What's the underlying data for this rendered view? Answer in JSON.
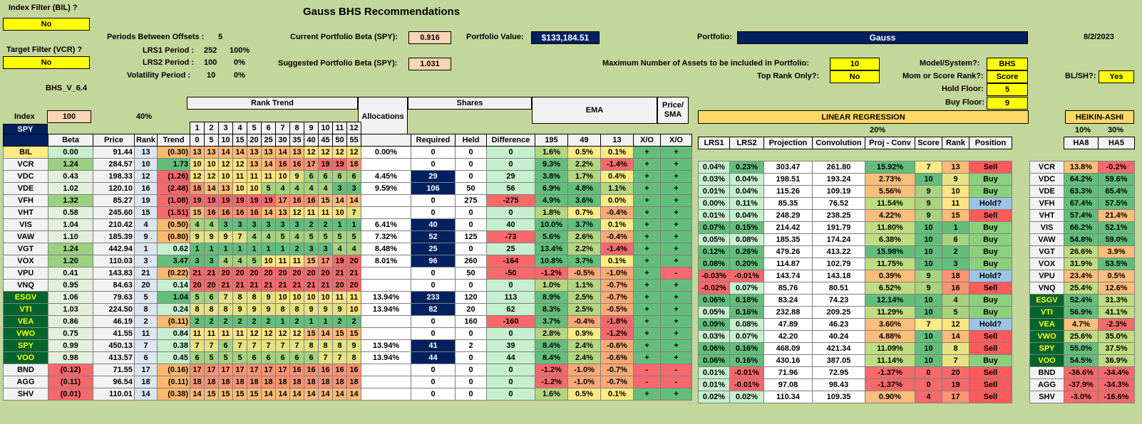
{
  "title": "Gauss BHS Recommendations",
  "date": "8/2/2023",
  "index_filter": {
    "label": "Index Filter (BIL) ?",
    "value": "No"
  },
  "target_filter": {
    "label": "Target Filter (VCR) ?",
    "value": "No"
  },
  "version": "BHS_V_6.4",
  "periods": [
    {
      "label": "Periods Between Offsets :",
      "value": "5",
      "pct": ""
    },
    {
      "label": "LRS1 Period :",
      "value": "252",
      "pct": "100%"
    },
    {
      "label": "LRS2 Period :",
      "value": "100",
      "pct": "0%"
    },
    {
      "label": "Volatility Period :",
      "value": "10",
      "pct": "0%"
    }
  ],
  "current_beta": {
    "label": "Current Portfolio Beta (SPY):",
    "value": "0.916"
  },
  "suggested_beta": {
    "label": "Suggested Portfolio Beta (SPY):",
    "value": "1.031"
  },
  "portfolio_value": {
    "label": "Portfolio Value:",
    "value": "$133,184.51"
  },
  "portfolio": {
    "label": "Portfolio:",
    "value": "Gauss"
  },
  "max_assets": {
    "label": "Maximum Number of Assets to be included in Portfolio:",
    "value": "10"
  },
  "top_rank": {
    "label": "Top Rank Only?:",
    "value": "No"
  },
  "model": {
    "label": "Model/System?:",
    "value": "BHS"
  },
  "mom_score": {
    "label": "Mom or Score Rank?:",
    "value": "Score"
  },
  "hold_floor": {
    "label": "Hold Floor:",
    "value": "5"
  },
  "buy_floor": {
    "label": "Buy Floor:",
    "value": "9"
  },
  "blsh": {
    "label": "BL/SH?:",
    "value": "Yes"
  },
  "index_block": {
    "index_label": "Index",
    "index_val": "100",
    "pct": "40%",
    "spy": "SPY"
  },
  "headers": {
    "beta": "Beta",
    "price": "Price",
    "rank": "Rank",
    "trend": "Trend",
    "rank_trend": "Rank Trend",
    "rank_trend_nums": [
      "1",
      "2",
      "3",
      "4",
      "5",
      "6",
      "7",
      "8",
      "9",
      "10",
      "11",
      "12"
    ],
    "rank_trend_offsets": [
      "0",
      "5",
      "10",
      "15",
      "20",
      "25",
      "30",
      "35",
      "40",
      "45",
      "50",
      "55"
    ],
    "allocations": "Allocations",
    "shares": "Shares",
    "required": "Required",
    "held": "Held",
    "difference": "Difference",
    "ema": "EMA",
    "ema_periods": [
      "195",
      "49",
      "13"
    ],
    "xo": "X/O",
    "price_sma": "Price/ SMA",
    "linreg": "LINEAR REGRESSION",
    "linreg_pct": "20%",
    "lrs1": "LRS1",
    "lrs2": "LRS2",
    "projection": "Projection",
    "convolution": "Convolution",
    "proj_conv": "Proj - Conv",
    "score": "Score",
    "rank2": "Rank",
    "position": "Position",
    "heikin": "HEIKIN-ASHI",
    "ha_pct1": "10%",
    "ha_pct2": "30%",
    "ha8": "HA8",
    "ha5": "HA5"
  },
  "rows": [
    {
      "t": "BIL",
      "beta": "0.00",
      "price": "91.44",
      "rank": "13",
      "trend": "(0.30)",
      "rt": [
        "13",
        "13",
        "14",
        "14",
        "13",
        "13",
        "14",
        "13",
        "12",
        "12",
        "12",
        "12"
      ],
      "alloc": "0.00%",
      "req": "0",
      "held": "0",
      "diff": "0",
      "e1": "1.6%",
      "e2": "0.5%",
      "e3": "0.1%",
      "xo1": "+",
      "xo2": "+",
      "lrs1": "",
      "lrs2": "",
      "proj": "",
      "conv": "",
      "pc": "",
      "score": "",
      "rank2": "",
      "pos": "",
      "ha8": "",
      "ha5": ""
    },
    {
      "t": "VCR",
      "beta": "1.24",
      "price": "284.57",
      "rank": "10",
      "trend": "1.73",
      "rt": [
        "10",
        "10",
        "12",
        "12",
        "13",
        "14",
        "16",
        "16",
        "17",
        "19",
        "19",
        "18"
      ],
      "alloc": "",
      "req": "0",
      "held": "0",
      "diff": "0",
      "e1": "9.3%",
      "e2": "2.2%",
      "e3": "-1.4%",
      "xo1": "+",
      "xo2": "+",
      "lrs1": "0.04%",
      "lrs2": "0.23%",
      "proj": "303.47",
      "conv": "261.80",
      "pc": "15.92%",
      "score": "7",
      "rank2": "13",
      "pos": "Sell",
      "ha8": "13.8%",
      "ha5": "-0.2%"
    },
    {
      "t": "VDC",
      "beta": "0.43",
      "price": "198.33",
      "rank": "12",
      "trend": "(1.26)",
      "rt": [
        "12",
        "12",
        "10",
        "11",
        "11",
        "11",
        "10",
        "9",
        "6",
        "6",
        "6",
        "6"
      ],
      "alloc": "4.45%",
      "req": "29",
      "held": "0",
      "diff": "29",
      "e1": "3.8%",
      "e2": "1.7%",
      "e3": "0.4%",
      "xo1": "+",
      "xo2": "+",
      "lrs1": "0.03%",
      "lrs2": "0.04%",
      "proj": "198.51",
      "conv": "193.24",
      "pc": "2.73%",
      "score": "10",
      "rank2": "9",
      "pos": "Buy",
      "ha8": "64.2%",
      "ha5": "59.6%"
    },
    {
      "t": "VDE",
      "beta": "1.02",
      "price": "120.10",
      "rank": "16",
      "trend": "(2.48)",
      "rt": [
        "16",
        "14",
        "13",
        "10",
        "10",
        "5",
        "4",
        "4",
        "4",
        "4",
        "3",
        "3"
      ],
      "alloc": "9.59%",
      "req": "106",
      "held": "50",
      "diff": "56",
      "e1": "6.9%",
      "e2": "4.8%",
      "e3": "1.1%",
      "xo1": "+",
      "xo2": "+",
      "lrs1": "0.01%",
      "lrs2": "0.04%",
      "proj": "115.26",
      "conv": "109.19",
      "pc": "5.56%",
      "score": "9",
      "rank2": "10",
      "pos": "Buy",
      "ha8": "63.3%",
      "ha5": "65.4%"
    },
    {
      "t": "VFH",
      "beta": "1.32",
      "price": "85.27",
      "rank": "19",
      "trend": "(1.08)",
      "rt": [
        "19",
        "19",
        "19",
        "19",
        "19",
        "19",
        "17",
        "16",
        "16",
        "15",
        "14",
        "14"
      ],
      "alloc": "",
      "req": "0",
      "held": "275",
      "diff": "-275",
      "e1": "4.9%",
      "e2": "3.6%",
      "e3": "0.0%",
      "xo1": "+",
      "xo2": "+",
      "lrs1": "0.00%",
      "lrs2": "0.11%",
      "proj": "85.35",
      "conv": "76.52",
      "pc": "11.54%",
      "score": "9",
      "rank2": "11",
      "pos": "Hold?",
      "ha8": "67.4%",
      "ha5": "57.5%"
    },
    {
      "t": "VHT",
      "beta": "0.58",
      "price": "245.60",
      "rank": "15",
      "trend": "(1.51)",
      "rt": [
        "15",
        "16",
        "16",
        "16",
        "16",
        "14",
        "13",
        "12",
        "11",
        "11",
        "10",
        "7"
      ],
      "alloc": "",
      "req": "0",
      "held": "0",
      "diff": "0",
      "e1": "1.8%",
      "e2": "0.7%",
      "e3": "-0.4%",
      "xo1": "+",
      "xo2": "+",
      "lrs1": "0.01%",
      "lrs2": "0.04%",
      "proj": "248.29",
      "conv": "238.25",
      "pc": "4.22%",
      "score": "9",
      "rank2": "15",
      "pos": "Sell",
      "ha8": "57.4%",
      "ha5": "21.4%"
    },
    {
      "t": "VIS",
      "beta": "1.04",
      "price": "210.42",
      "rank": "4",
      "trend": "(0.50)",
      "rt": [
        "4",
        "4",
        "3",
        "3",
        "3",
        "3",
        "3",
        "3",
        "2",
        "2",
        "1",
        "1"
      ],
      "alloc": "6.41%",
      "req": "40",
      "held": "0",
      "diff": "40",
      "e1": "10.0%",
      "e2": "3.7%",
      "e3": "0.1%",
      "xo1": "+",
      "xo2": "+",
      "lrs1": "0.07%",
      "lrs2": "0.15%",
      "proj": "214.42",
      "conv": "191.79",
      "pc": "11.80%",
      "score": "10",
      "rank2": "1",
      "pos": "Buy",
      "ha8": "66.2%",
      "ha5": "52.1%"
    },
    {
      "t": "VAW",
      "beta": "1.10",
      "price": "185.39",
      "rank": "9",
      "trend": "(0.80)",
      "rt": [
        "9",
        "9",
        "9",
        "7",
        "4",
        "4",
        "5",
        "4",
        "5",
        "5",
        "5",
        "5"
      ],
      "alloc": "7.32%",
      "req": "52",
      "held": "125",
      "diff": "-73",
      "e1": "5.6%",
      "e2": "2.6%",
      "e3": "-0.4%",
      "xo1": "+",
      "xo2": "+",
      "lrs1": "0.05%",
      "lrs2": "0.08%",
      "proj": "185.35",
      "conv": "174.24",
      "pc": "6.38%",
      "score": "10",
      "rank2": "6",
      "pos": "Buy",
      "ha8": "54.8%",
      "ha5": "59.0%"
    },
    {
      "t": "VGT",
      "beta": "1.24",
      "price": "442.94",
      "rank": "1",
      "trend": "0.62",
      "rt": [
        "1",
        "1",
        "1",
        "1",
        "1",
        "1",
        "1",
        "2",
        "3",
        "3",
        "4",
        "4"
      ],
      "alloc": "8.48%",
      "req": "25",
      "held": "0",
      "diff": "25",
      "e1": "13.4%",
      "e2": "2.2%",
      "e3": "-1.4%",
      "xo1": "+",
      "xo2": "+",
      "lrs1": "0.12%",
      "lrs2": "0.26%",
      "proj": "479.26",
      "conv": "413.22",
      "pc": "15.98%",
      "score": "10",
      "rank2": "2",
      "pos": "Buy",
      "ha8": "26.6%",
      "ha5": "3.9%"
    },
    {
      "t": "VOX",
      "beta": "1.20",
      "price": "110.03",
      "rank": "3",
      "trend": "3.47",
      "rt": [
        "3",
        "3",
        "4",
        "4",
        "5",
        "10",
        "11",
        "11",
        "15",
        "17",
        "19",
        "20"
      ],
      "alloc": "8.01%",
      "req": "96",
      "held": "260",
      "diff": "-164",
      "e1": "10.8%",
      "e2": "3.7%",
      "e3": "0.1%",
      "xo1": "+",
      "xo2": "+",
      "lrs1": "0.08%",
      "lrs2": "0.20%",
      "proj": "114.87",
      "conv": "102.79",
      "pc": "11.75%",
      "score": "10",
      "rank2": "3",
      "pos": "Buy",
      "ha8": "31.9%",
      "ha5": "53.5%"
    },
    {
      "t": "VPU",
      "beta": "0.41",
      "price": "143.83",
      "rank": "21",
      "trend": "(0.22)",
      "rt": [
        "21",
        "21",
        "20",
        "20",
        "20",
        "20",
        "20",
        "20",
        "20",
        "20",
        "21",
        "21"
      ],
      "alloc": "",
      "req": "0",
      "held": "50",
      "diff": "-50",
      "e1": "-1.2%",
      "e2": "-0.5%",
      "e3": "-1.0%",
      "xo1": "+",
      "xo2": "-",
      "lrs1": "-0.03%",
      "lrs2": "-0.01%",
      "proj": "143.74",
      "conv": "143.18",
      "pc": "0.39%",
      "score": "9",
      "rank2": "18",
      "pos": "Hold?",
      "ha8": "23.4%",
      "ha5": "0.5%"
    },
    {
      "t": "VNQ",
      "beta": "0.95",
      "price": "84.63",
      "rank": "20",
      "trend": "0.14",
      "rt": [
        "20",
        "20",
        "21",
        "21",
        "21",
        "21",
        "21",
        "21",
        "21",
        "21",
        "20",
        "20"
      ],
      "alloc": "",
      "req": "0",
      "held": "0",
      "diff": "0",
      "e1": "1.0%",
      "e2": "1.1%",
      "e3": "-0.7%",
      "xo1": "+",
      "xo2": "+",
      "lrs1": "-0.02%",
      "lrs2": "0.07%",
      "proj": "85.76",
      "conv": "80.51",
      "pc": "6.52%",
      "score": "9",
      "rank2": "16",
      "pos": "Sell",
      "ha8": "25.4%",
      "ha5": "12.6%"
    },
    {
      "t": "ESGV",
      "beta": "1.06",
      "price": "79.63",
      "rank": "5",
      "trend": "1.04",
      "rt": [
        "5",
        "6",
        "7",
        "8",
        "8",
        "9",
        "10",
        "10",
        "10",
        "10",
        "11",
        "11"
      ],
      "alloc": "13.94%",
      "req": "233",
      "held": "120",
      "diff": "113",
      "e1": "8.9%",
      "e2": "2.5%",
      "e3": "-0.7%",
      "xo1": "+",
      "xo2": "+",
      "lrs1": "0.06%",
      "lrs2": "0.18%",
      "proj": "83.24",
      "conv": "74.23",
      "pc": "12.14%",
      "score": "10",
      "rank2": "4",
      "pos": "Buy",
      "ha8": "52.4%",
      "ha5": "31.3%"
    },
    {
      "t": "VTI",
      "beta": "1.03",
      "price": "224.50",
      "rank": "8",
      "trend": "0.24",
      "rt": [
        "8",
        "8",
        "8",
        "9",
        "9",
        "9",
        "8",
        "8",
        "9",
        "9",
        "9",
        "10"
      ],
      "alloc": "13.94%",
      "req": "82",
      "held": "20",
      "diff": "62",
      "e1": "8.3%",
      "e2": "2.5%",
      "e3": "-0.5%",
      "xo1": "+",
      "xo2": "+",
      "lrs1": "0.05%",
      "lrs2": "0.16%",
      "proj": "232.88",
      "conv": "209.25",
      "pc": "11.29%",
      "score": "10",
      "rank2": "5",
      "pos": "Buy",
      "ha8": "56.9%",
      "ha5": "41.1%"
    },
    {
      "t": "VEA",
      "beta": "0.86",
      "price": "46.19",
      "rank": "2",
      "trend": "(0.11)",
      "rt": [
        "2",
        "2",
        "2",
        "2",
        "2",
        "2",
        "1",
        "2",
        "1",
        "1",
        "2",
        "2"
      ],
      "alloc": "",
      "req": "0",
      "held": "160",
      "diff": "-160",
      "e1": "3.7%",
      "e2": "-0.4%",
      "e3": "-1.8%",
      "xo1": "+",
      "xo2": "+",
      "lrs1": "0.09%",
      "lrs2": "0.08%",
      "proj": "47.89",
      "conv": "46.23",
      "pc": "3.60%",
      "score": "7",
      "rank2": "12",
      "pos": "Hold?",
      "ha8": "4.7%",
      "ha5": "-2.3%"
    },
    {
      "t": "VWO",
      "beta": "0.75",
      "price": "41.55",
      "rank": "11",
      "trend": "0.84",
      "rt": [
        "11",
        "11",
        "11",
        "11",
        "12",
        "12",
        "12",
        "12",
        "15",
        "14",
        "15",
        "15"
      ],
      "alloc": "",
      "req": "0",
      "held": "0",
      "diff": "0",
      "e1": "2.8%",
      "e2": "0.9%",
      "e3": "-1.2%",
      "xo1": "+",
      "xo2": "+",
      "lrs1": "0.03%",
      "lrs2": "0.07%",
      "proj": "42.20",
      "conv": "40.24",
      "pc": "4.88%",
      "score": "10",
      "rank2": "14",
      "pos": "Sell",
      "ha8": "25.6%",
      "ha5": "35.0%"
    },
    {
      "t": "SPY",
      "beta": "0.99",
      "price": "450.13",
      "rank": "7",
      "trend": "0.38",
      "rt": [
        "7",
        "7",
        "6",
        "7",
        "7",
        "7",
        "7",
        "7",
        "8",
        "8",
        "8",
        "9"
      ],
      "alloc": "13.94%",
      "req": "41",
      "held": "2",
      "diff": "39",
      "e1": "8.4%",
      "e2": "2.4%",
      "e3": "-0.6%",
      "xo1": "+",
      "xo2": "+",
      "lrs1": "0.06%",
      "lrs2": "0.16%",
      "proj": "468.09",
      "conv": "421.34",
      "pc": "11.09%",
      "score": "10",
      "rank2": "8",
      "pos": "Sell",
      "ha8": "55.0%",
      "ha5": "37.5%"
    },
    {
      "t": "VOO",
      "beta": "0.98",
      "price": "413.57",
      "rank": "6",
      "trend": "0.45",
      "rt": [
        "6",
        "5",
        "5",
        "5",
        "6",
        "6",
        "6",
        "6",
        "6",
        "7",
        "7",
        "8"
      ],
      "alloc": "13.94%",
      "req": "44",
      "held": "0",
      "diff": "44",
      "e1": "8.4%",
      "e2": "2.4%",
      "e3": "-0.6%",
      "xo1": "+",
      "xo2": "+",
      "lrs1": "0.06%",
      "lrs2": "0.16%",
      "proj": "430.16",
      "conv": "387.05",
      "pc": "11.14%",
      "score": "10",
      "rank2": "7",
      "pos": "Buy",
      "ha8": "54.5%",
      "ha5": "36.9%"
    },
    {
      "t": "BND",
      "beta": "(0.12)",
      "price": "71.55",
      "rank": "17",
      "trend": "(0.16)",
      "rt": [
        "17",
        "17",
        "17",
        "17",
        "17",
        "17",
        "17",
        "16",
        "16",
        "16",
        "16",
        "16"
      ],
      "alloc": "",
      "req": "0",
      "held": "0",
      "diff": "0",
      "e1": "-1.2%",
      "e2": "-1.0%",
      "e3": "-0.7%",
      "xo1": "-",
      "xo2": "-",
      "lrs1": "0.01%",
      "lrs2": "-0.01%",
      "proj": "71.96",
      "conv": "72.95",
      "pc": "-1.37%",
      "score": "0",
      "rank2": "20",
      "pos": "Sell",
      "ha8": "-36.6%",
      "ha5": "-34.4%"
    },
    {
      "t": "AGG",
      "beta": "(0.11)",
      "price": "96.54",
      "rank": "18",
      "trend": "(0.11)",
      "rt": [
        "18",
        "18",
        "18",
        "18",
        "18",
        "18",
        "18",
        "18",
        "18",
        "18",
        "18",
        "18"
      ],
      "alloc": "",
      "req": "0",
      "held": "0",
      "diff": "0",
      "e1": "-1.2%",
      "e2": "-1.0%",
      "e3": "-0.7%",
      "xo1": "-",
      "xo2": "-",
      "lrs1": "0.01%",
      "lrs2": "-0.01%",
      "proj": "97.08",
      "conv": "98.43",
      "pc": "-1.37%",
      "score": "0",
      "rank2": "19",
      "pos": "Sell",
      "ha8": "-37.9%",
      "ha5": "-34.3%"
    },
    {
      "t": "SHV",
      "beta": "(0.01)",
      "price": "110.01",
      "rank": "14",
      "trend": "(0.38)",
      "rt": [
        "14",
        "15",
        "15",
        "15",
        "15",
        "14",
        "14",
        "14",
        "14",
        "14",
        "14",
        "14"
      ],
      "alloc": "",
      "req": "0",
      "held": "0",
      "diff": "0",
      "e1": "1.6%",
      "e2": "0.5%",
      "e3": "0.1%",
      "xo1": "+",
      "xo2": "+",
      "lrs1": "0.02%",
      "lrs2": "0.02%",
      "proj": "110.34",
      "conv": "109.35",
      "pc": "0.90%",
      "score": "4",
      "rank2": "17",
      "pos": "Sell",
      "ha8": "-3.0%",
      "ha5": "-16.6%"
    }
  ]
}
